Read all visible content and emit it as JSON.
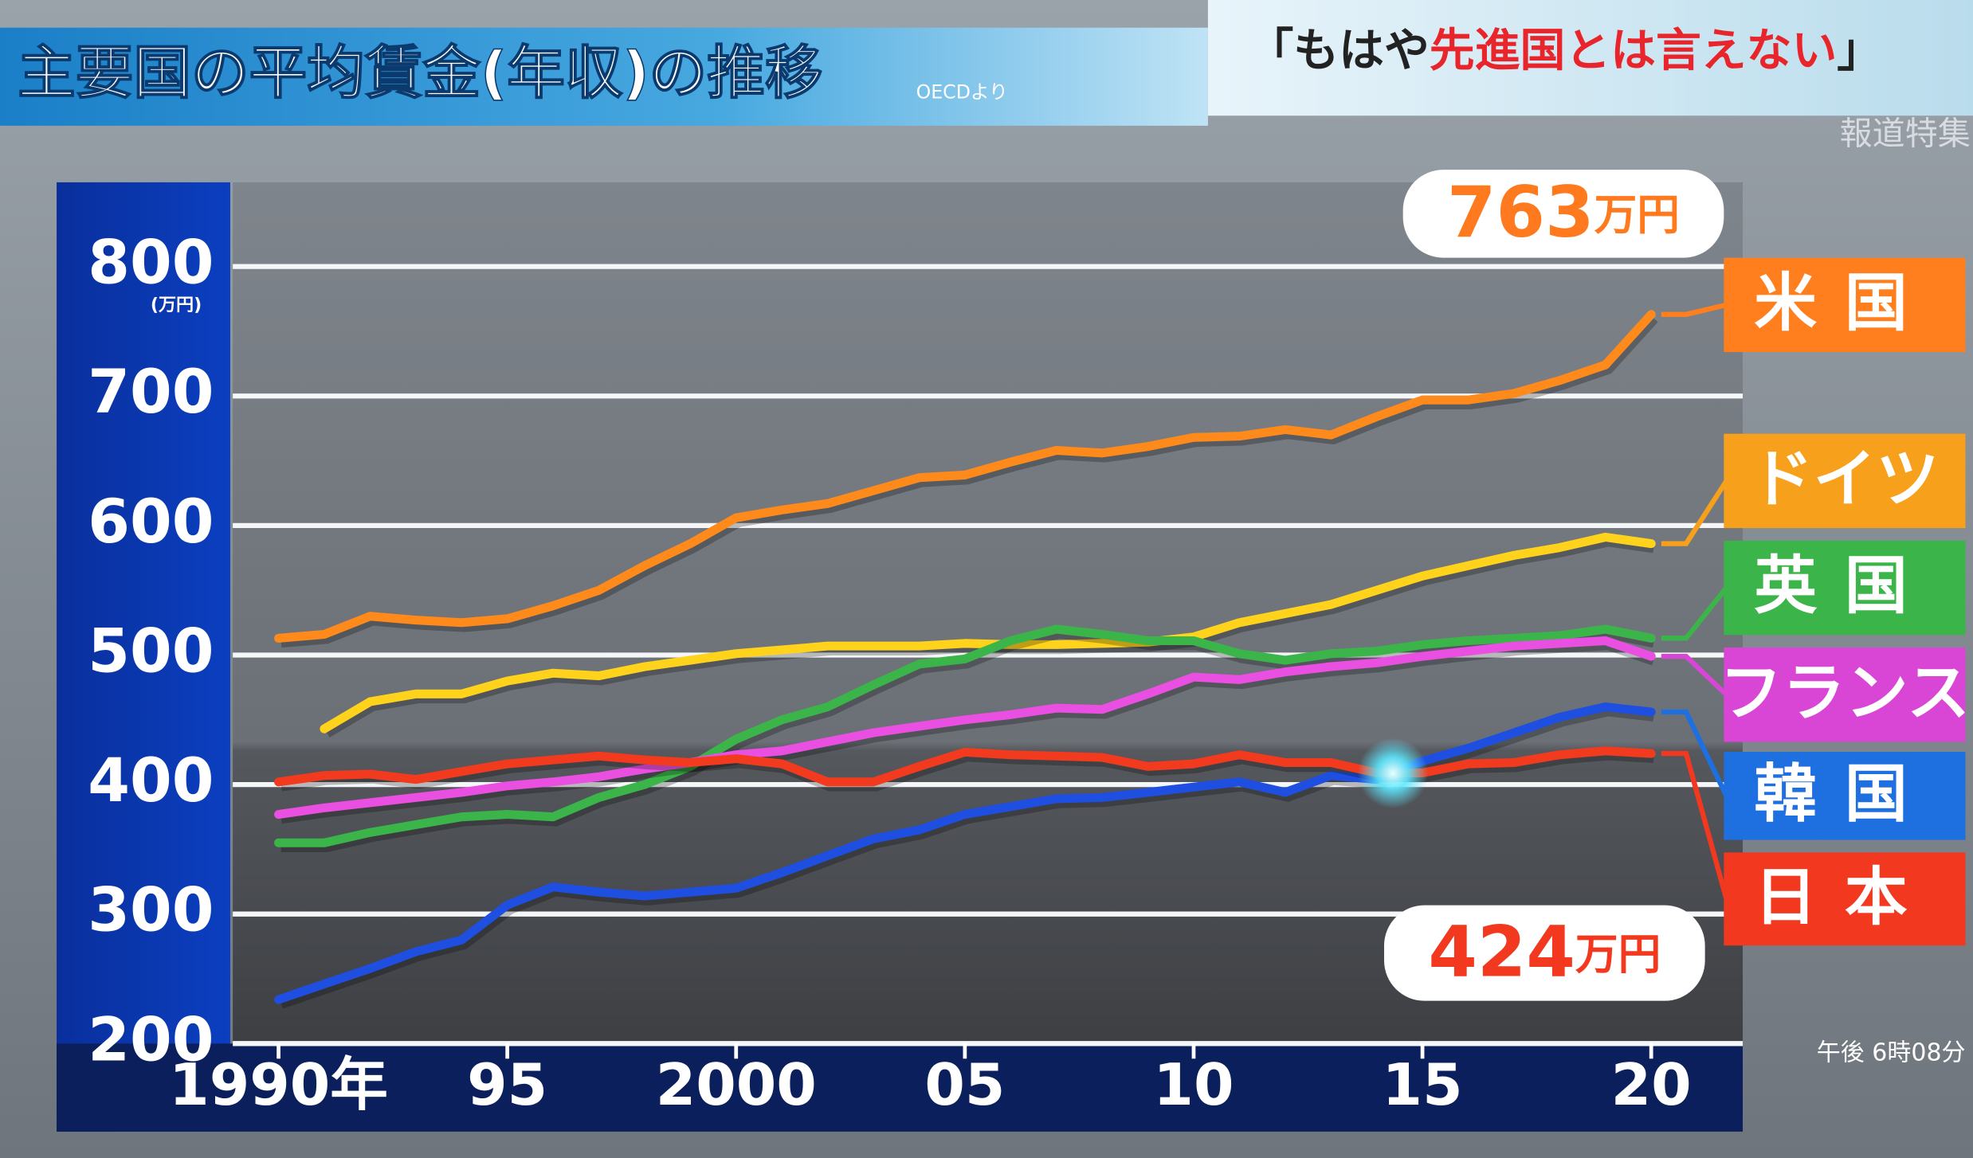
{
  "chart_data": {
    "type": "line",
    "title": "主要国の平均賃金(年収)の推移",
    "source": "OECDより",
    "headline": [
      "「もはや",
      "先進国とは言えない",
      "」"
    ],
    "program": "報道特集",
    "clock": "午後 6時08分",
    "y_unit": "(万円)",
    "x": [
      1990,
      1991,
      1992,
      1993,
      1994,
      1995,
      1996,
      1997,
      1998,
      1999,
      2000,
      2001,
      2002,
      2003,
      2004,
      2005,
      2006,
      2007,
      2008,
      2009,
      2010,
      2011,
      2012,
      2013,
      2014,
      2015,
      2016,
      2017,
      2018,
      2019,
      2020
    ],
    "xlim": [
      1989,
      2022
    ],
    "xticks": [
      {
        "value": 1990,
        "label": "1990年"
      },
      {
        "value": 1995,
        "label": "95"
      },
      2000,
      {
        "value": 2005,
        "label": "05"
      },
      {
        "value": 2010,
        "label": "10"
      },
      {
        "value": 2015,
        "label": "15"
      },
      {
        "value": 2020,
        "label": "20"
      }
    ],
    "ylim": [
      200,
      865
    ],
    "yticks": [
      200,
      300,
      400,
      500,
      600,
      700,
      800
    ],
    "grid": true,
    "series": [
      {
        "name": "米国",
        "color": "#ff8a1c",
        "legend_color": "#ff7f1e",
        "values": [
          513,
          516,
          530,
          527,
          525,
          528,
          538,
          550,
          569,
          586,
          606,
          612,
          617,
          627,
          637,
          639,
          649,
          658,
          656,
          661,
          668,
          669,
          674,
          670,
          684,
          697,
          697,
          702,
          712,
          724,
          763
        ]
      },
      {
        "name": "ドイツ",
        "color": "#ffd21c",
        "legend_color": "#f7a01c",
        "values": [
          null,
          443,
          464,
          470,
          470,
          480,
          486,
          484,
          491,
          496,
          501,
          504,
          507,
          507,
          507,
          509,
          508,
          508,
          509,
          510,
          514,
          525,
          532,
          539,
          550,
          561,
          569,
          577,
          583,
          591,
          586
        ]
      },
      {
        "name": "英国",
        "color": "#3bb54a",
        "legend_color": "#3bb54a",
        "values": [
          355,
          355,
          363,
          369,
          375,
          377,
          375,
          390,
          400,
          414,
          435,
          450,
          460,
          477,
          493,
          497,
          511,
          520,
          516,
          511,
          511,
          501,
          496,
          501,
          503,
          508,
          511,
          513,
          515,
          520,
          513
        ]
      },
      {
        "name": "フランス",
        "color": "#e94fe0",
        "legend_color": "#d946d6",
        "values": [
          377,
          382,
          386,
          390,
          394,
          399,
          402,
          406,
          412,
          417,
          423,
          426,
          433,
          440,
          445,
          450,
          454,
          459,
          458,
          470,
          483,
          481,
          487,
          491,
          494,
          499,
          503,
          507,
          509,
          511,
          499
        ]
      },
      {
        "name": "韓国",
        "color": "#1f4fe0",
        "legend_color": "#1e6fe0",
        "values": [
          234,
          246,
          258,
          271,
          280,
          307,
          321,
          317,
          314,
          317,
          320,
          332,
          345,
          358,
          365,
          377,
          383,
          389,
          390,
          394,
          398,
          402,
          394,
          407,
          404,
          418,
          428,
          440,
          452,
          460,
          456
        ]
      },
      {
        "name": "日本",
        "color": "#f23a1e",
        "legend_color": "#f2381e",
        "values": [
          402,
          407,
          408,
          404,
          410,
          416,
          419,
          422,
          419,
          417,
          420,
          416,
          402,
          402,
          414,
          425,
          423,
          422,
          421,
          414,
          416,
          423,
          417,
          417,
          409,
          409,
          416,
          417,
          423,
          426,
          424
        ]
      }
    ],
    "annotations": [
      {
        "number": "763",
        "unit": "万円",
        "color": "#ff7a1e"
      },
      {
        "number": "424",
        "unit": "万円",
        "color": "#f2381e"
      }
    ]
  }
}
